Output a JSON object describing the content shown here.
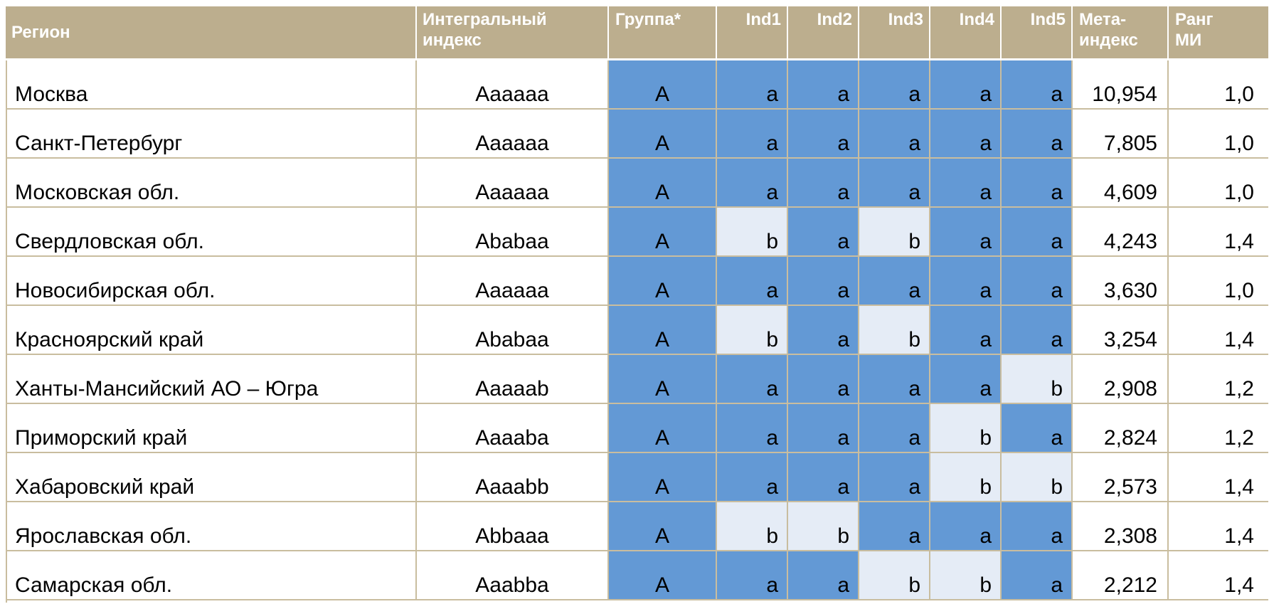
{
  "headers": {
    "region": "Регион",
    "integral_line1": "Интегральный",
    "integral_line2": "индекс",
    "group": "Группа*",
    "ind1": "Ind1",
    "ind2": "Ind2",
    "ind3": "Ind3",
    "ind4": "Ind4",
    "ind5": "Ind5",
    "meta_line1": "Мета-",
    "meta_line2": "индекс",
    "rank_line1": "Ранг",
    "rank_line2": "МИ"
  },
  "colors": {
    "header_bg": "#bcae8e",
    "cell_a_bg": "#6399d5",
    "cell_b_bg": "#e5ecf6",
    "grid_line": "#c9bd9f"
  },
  "rows": [
    {
      "region": "Москва",
      "integral": "Aaaaaa",
      "group": "A",
      "ind": [
        "a",
        "a",
        "a",
        "a",
        "a"
      ],
      "meta": "10,954",
      "rank": "1,0"
    },
    {
      "region": "Санкт-Петербург",
      "integral": "Aaaaaa",
      "group": "A",
      "ind": [
        "a",
        "a",
        "a",
        "a",
        "a"
      ],
      "meta": "7,805",
      "rank": "1,0"
    },
    {
      "region": "Московская обл.",
      "integral": "Aaaaaa",
      "group": "A",
      "ind": [
        "a",
        "a",
        "a",
        "a",
        "a"
      ],
      "meta": "4,609",
      "rank": "1,0"
    },
    {
      "region": "Свердловская обл.",
      "integral": "Ababaa",
      "group": "A",
      "ind": [
        "b",
        "a",
        "b",
        "a",
        "a"
      ],
      "meta": "4,243",
      "rank": "1,4"
    },
    {
      "region": "Новосибирская обл.",
      "integral": "Aaaaaa",
      "group": "A",
      "ind": [
        "a",
        "a",
        "a",
        "a",
        "a"
      ],
      "meta": "3,630",
      "rank": "1,0"
    },
    {
      "region": "Красноярский край",
      "integral": "Ababaa",
      "group": "A",
      "ind": [
        "b",
        "a",
        "b",
        "a",
        "a"
      ],
      "meta": "3,254",
      "rank": "1,4"
    },
    {
      "region": "Ханты-Мансийский АО – Югра",
      "integral": "Aaaaab",
      "group": "A",
      "ind": [
        "a",
        "a",
        "a",
        "a",
        "b"
      ],
      "meta": "2,908",
      "rank": "1,2"
    },
    {
      "region": "Приморский край",
      "integral": "Aaaaba",
      "group": "A",
      "ind": [
        "a",
        "a",
        "a",
        "b",
        "a"
      ],
      "meta": "2,824",
      "rank": "1,2"
    },
    {
      "region": "Хабаровский край",
      "integral": "Aaaabb",
      "group": "A",
      "ind": [
        "a",
        "a",
        "a",
        "b",
        "b"
      ],
      "meta": "2,573",
      "rank": "1,4"
    },
    {
      "region": "Ярославская обл.",
      "integral": "Abbaaa",
      "group": "A",
      "ind": [
        "b",
        "b",
        "a",
        "a",
        "a"
      ],
      "meta": "2,308",
      "rank": "1,4"
    },
    {
      "region": "Самарская обл.",
      "integral": "Aaabba",
      "group": "A",
      "ind": [
        "a",
        "a",
        "b",
        "b",
        "a"
      ],
      "meta": "2,212",
      "rank": "1,4"
    }
  ]
}
